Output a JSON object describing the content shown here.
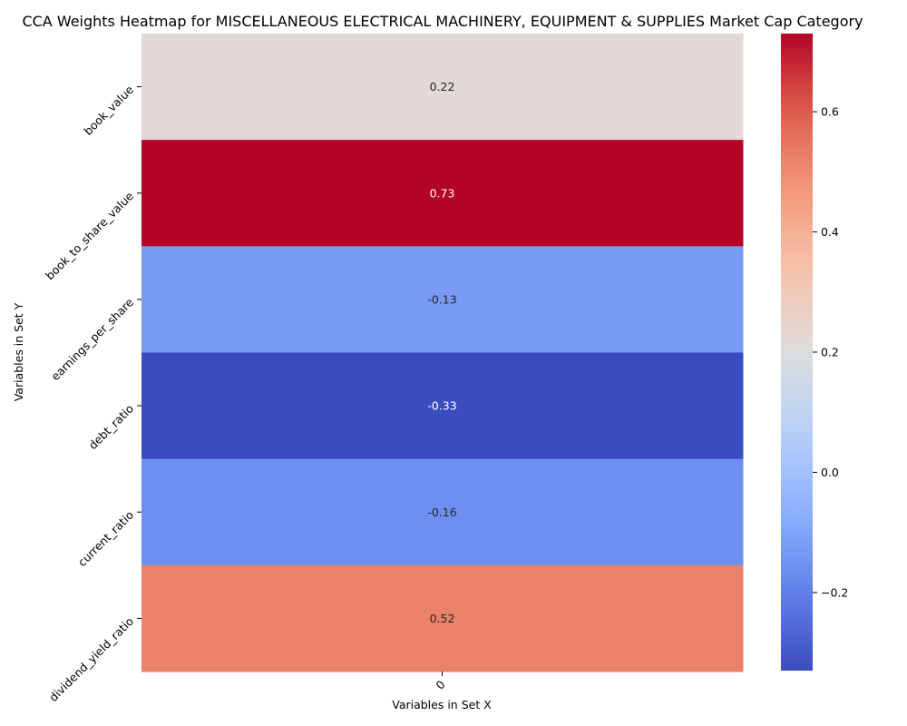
{
  "chart_data": {
    "type": "heatmap",
    "title": "CCA Weights Heatmap for MISCELLANEOUS ELECTRICAL MACHINERY, EQUIPMENT & SUPPLIES Market Cap Category",
    "xlabel": "Variables in Set X",
    "ylabel": "Variables in Set Y",
    "x_categories": [
      "0"
    ],
    "y_categories": [
      "book_value",
      "book_to_share_value",
      "earnings_per_share",
      "debt_ratio",
      "current_ratio",
      "dividend_yield_ratio"
    ],
    "values": [
      [
        0.22
      ],
      [
        0.73
      ],
      [
        -0.13
      ],
      [
        -0.33
      ],
      [
        -0.16
      ],
      [
        0.52
      ]
    ],
    "cell_labels": [
      "0.22",
      "0.73",
      "-0.13",
      "-0.33",
      "-0.16",
      "0.52"
    ],
    "colormap": "coolwarm",
    "vmin": -0.33,
    "vmax": 0.73,
    "colorbar_ticks": [
      -0.2,
      0.0,
      0.2,
      0.4,
      0.6
    ],
    "colorbar_tick_labels": [
      "−0.2",
      "0.0",
      "0.2",
      "0.4",
      "0.6"
    ]
  }
}
